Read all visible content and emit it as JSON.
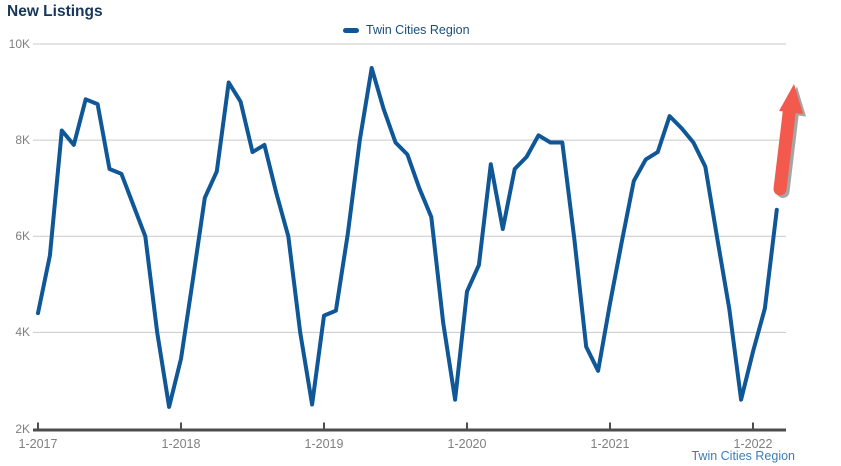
{
  "page": {
    "title": "New Listings"
  },
  "legend": {
    "label": "Twin Cities Region"
  },
  "footer": {
    "label": "Twin Cities Region"
  },
  "colors": {
    "series_line": "#0f5796",
    "title_text": "#16365c",
    "legend_text": "#1b4e79",
    "footer_link": "#3c7cba",
    "axis_text": "#7f7f7f",
    "gridline": "#c9c9c9",
    "axis_line": "#4d4d4d",
    "arrow": "#f4594e"
  },
  "chart_data": {
    "type": "line",
    "title": "New Listings",
    "x_unit": "month",
    "x_start": "1-2017",
    "x_end": "3-2022",
    "x_tick_labels": [
      "1-2017",
      "1-2018",
      "1-2019",
      "1-2020",
      "1-2021",
      "1-2022"
    ],
    "x_tick_month_indices": [
      0,
      12,
      24,
      36,
      48,
      60
    ],
    "y_tick_values": [
      2,
      4,
      6,
      8,
      10
    ],
    "y_tick_labels": [
      "2K",
      "4K",
      "6K",
      "8K",
      "10K"
    ],
    "ylim": [
      2,
      10
    ],
    "grid": true,
    "legend_position": "top-center",
    "series": [
      {
        "name": "Twin Cities Region",
        "color": "#0f5796",
        "values_thousands": [
          4.4,
          5.6,
          8.2,
          7.9,
          8.85,
          8.75,
          7.4,
          7.3,
          6.65,
          6.0,
          4.0,
          2.45,
          3.45,
          5.1,
          6.8,
          7.35,
          9.2,
          8.8,
          7.75,
          7.9,
          6.9,
          6.0,
          4.0,
          2.5,
          4.35,
          4.45,
          6.05,
          8.0,
          9.5,
          8.65,
          7.95,
          7.7,
          7.0,
          6.4,
          4.2,
          2.6,
          4.85,
          5.4,
          7.5,
          6.15,
          7.4,
          7.65,
          8.1,
          7.95,
          7.95,
          5.95,
          3.7,
          3.2,
          4.6,
          5.9,
          7.15,
          7.6,
          7.75,
          8.5,
          8.25,
          7.95,
          7.45,
          5.95,
          4.5,
          2.6,
          3.6,
          4.5,
          6.55
        ]
      }
    ],
    "annotation": {
      "type": "up-arrow",
      "color": "#f4594e",
      "meaning": "upward trend highlight at end of series"
    }
  }
}
